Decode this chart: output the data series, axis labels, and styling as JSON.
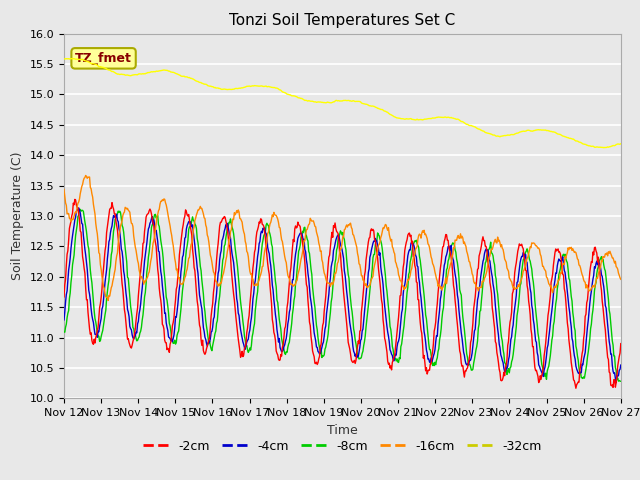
{
  "title": "Tonzi Soil Temperatures Set C",
  "xlabel": "Time",
  "ylabel": "Soil Temperature (C)",
  "ylim": [
    10.0,
    16.0
  ],
  "x_tick_labels": [
    "Nov 12",
    "Nov 13",
    "Nov 14",
    "Nov 15",
    "Nov 16",
    "Nov 17",
    "Nov 18",
    "Nov 19",
    "Nov 20",
    "Nov 21",
    "Nov 22",
    "Nov 23",
    "Nov 24",
    "Nov 25",
    "Nov 26",
    "Nov 27"
  ],
  "colors": {
    "2cm": "#ff0000",
    "4cm": "#0000cc",
    "8cm": "#00cc00",
    "16cm": "#ff8800",
    "32cm": "#ffff00"
  },
  "TZ_fmet_box_facecolor": "#ffff99",
  "TZ_fmet_text_color": "#880000",
  "TZ_fmet_edge_color": "#aaaa00",
  "fig_bg": "#e8e8e8",
  "plot_bg": "#e8e8e8",
  "grid_color": "#ffffff",
  "title_fontsize": 11,
  "axis_label_fontsize": 9,
  "tick_fontsize": 8,
  "legend_fontsize": 9
}
